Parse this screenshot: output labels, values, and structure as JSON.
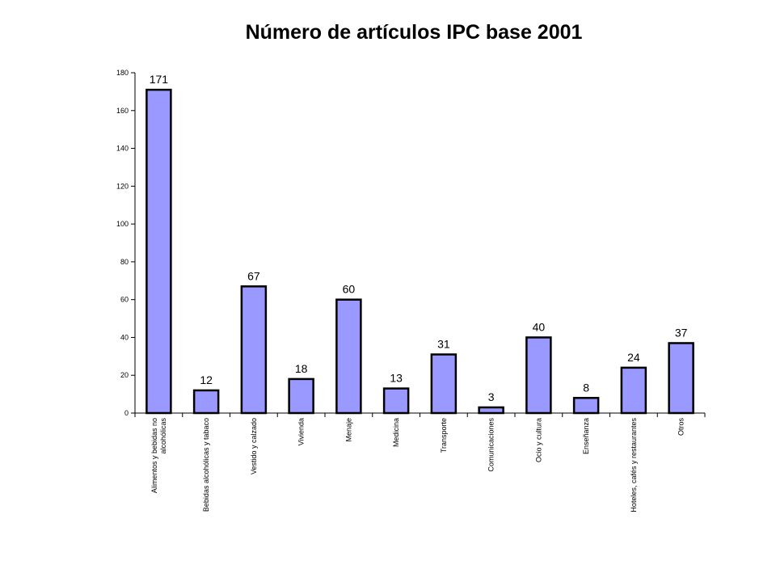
{
  "chart_data": {
    "type": "bar",
    "title": "Número de artículos IPC base 2001",
    "xlabel": "",
    "ylabel": "",
    "ylim": [
      0,
      180
    ],
    "yticks": [
      0,
      20,
      40,
      60,
      80,
      100,
      120,
      140,
      160,
      180
    ],
    "categories": [
      [
        "Alimentos y bebidas no",
        "alcohólicas"
      ],
      [
        "Bebidas alcohólicas y tabaco"
      ],
      [
        "Vestido y calzado"
      ],
      [
        "Vivienda"
      ],
      [
        "Menaje"
      ],
      [
        "Medicina"
      ],
      [
        "Transporte"
      ],
      [
        "Comunicaciones"
      ],
      [
        "Ocio y cultura"
      ],
      [
        "Enseñanza"
      ],
      [
        "Hoteles, cafés y restaurantes"
      ],
      [
        "Otros"
      ]
    ],
    "values": [
      171,
      12,
      67,
      18,
      60,
      13,
      31,
      3,
      40,
      8,
      24,
      37
    ],
    "grid": false,
    "legend": "none",
    "colors": {
      "bar_fill": "#9999ff",
      "bar_stroke": "#000000"
    }
  }
}
